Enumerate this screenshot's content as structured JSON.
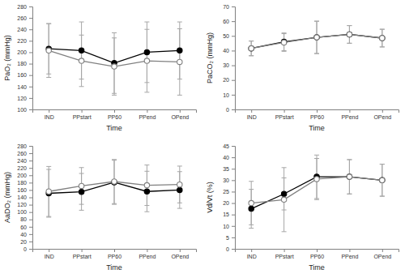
{
  "chart_data": [
    {
      "type": "line",
      "x_label": "Time",
      "y_label": "PaO₂ (mmHg)",
      "categories": [
        "IND",
        "PPstart",
        "PP60",
        "PPend",
        "OPend"
      ],
      "ylim": [
        100,
        280
      ],
      "yticks": [
        100,
        120,
        140,
        160,
        180,
        200,
        220,
        240,
        260,
        280
      ],
      "series": [
        {
          "color": "#000000",
          "marker": "circle",
          "values": [
            206,
            203,
            181,
            200,
            203
          ],
          "errors": [
            44,
            50,
            53,
            53,
            50
          ]
        },
        {
          "color": "#808080",
          "marker": "circle-open",
          "values": [
            203,
            185,
            175,
            185,
            183
          ],
          "errors": [
            47,
            45,
            50,
            55,
            58
          ]
        }
      ]
    },
    {
      "type": "line",
      "x_label": "Time",
      "y_label": "PaCO₂ (mmHg)",
      "categories": [
        "IND",
        "PPstart",
        "PP60",
        "PPend",
        "OPend"
      ],
      "ylim": [
        0,
        70
      ],
      "yticks": [
        0,
        10,
        20,
        30,
        40,
        50,
        60,
        70
      ],
      "series": [
        {
          "color": "#000000",
          "marker": "circle",
          "values": [
            41.5,
            46,
            49,
            51,
            48.5
          ],
          "errors": [
            5,
            6,
            11,
            6,
            6
          ]
        },
        {
          "color": "#808080",
          "marker": "circle-open",
          "values": [
            41.5,
            45.5,
            49,
            51,
            48.5
          ],
          "errors": [
            5,
            6,
            11,
            6,
            6
          ]
        }
      ]
    },
    {
      "type": "line",
      "x_label": "Time",
      "y_label": "AaDO₂ (mmHg)",
      "categories": [
        "IND",
        "PPstart",
        "PP60",
        "PPend",
        "OPend"
      ],
      "ylim": [
        0,
        280
      ],
      "yticks": [
        0,
        20,
        40,
        60,
        80,
        100,
        120,
        140,
        160,
        180,
        200,
        220,
        240,
        260,
        280
      ],
      "series": [
        {
          "color": "#000000",
          "marker": "circle",
          "values": [
            151,
            155,
            181,
            156,
            160
          ],
          "errors": [
            65,
            50,
            60,
            55,
            50
          ]
        },
        {
          "color": "#808080",
          "marker": "circle-open",
          "values": [
            156,
            171,
            183,
            173,
            175
          ],
          "errors": [
            68,
            50,
            60,
            55,
            50
          ]
        }
      ]
    },
    {
      "type": "line",
      "x_label": "Time",
      "y_label": "Vd/Vt (%)",
      "categories": [
        "IND",
        "PPstart",
        "PP60",
        "PPend",
        "OPend"
      ],
      "ylim": [
        0,
        45
      ],
      "yticks": [
        0,
        5,
        10,
        15,
        20,
        25,
        30,
        35,
        40,
        45
      ],
      "series": [
        {
          "color": "#000000",
          "marker": "circle",
          "values": [
            17.5,
            24,
            31.5,
            31.5,
            30
          ],
          "errors": [
            8.5,
            7,
            9.5,
            7.5,
            7
          ]
        },
        {
          "color": "#808080",
          "marker": "circle-open",
          "values": [
            20,
            21.5,
            30.5,
            31.5,
            30
          ],
          "errors": [
            9.5,
            14,
            9,
            7.5,
            7
          ]
        }
      ]
    }
  ]
}
